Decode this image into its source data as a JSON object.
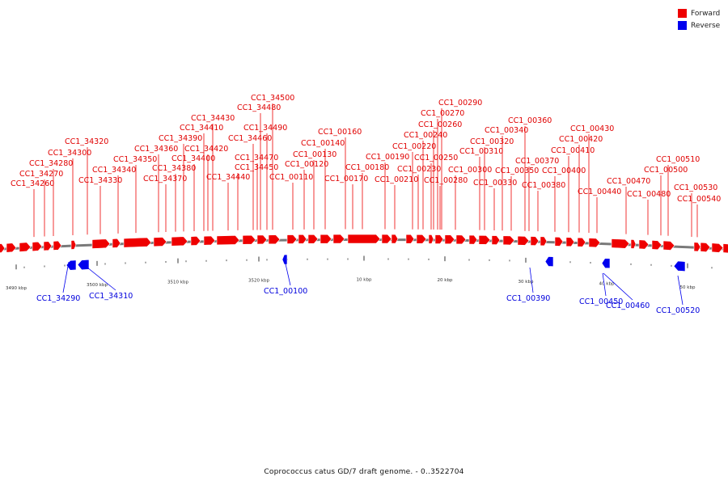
{
  "legend": [
    {
      "label": "Forward",
      "color": "#ee0000"
    },
    {
      "label": "Reverse",
      "color": "#0000ee"
    }
  ],
  "caption": "Coprococcus catus GD/7 draft genome. - 0..3522704",
  "genome": {
    "length_bp": 3522704,
    "backbone_color": "#7a7a7a"
  },
  "ticks": [
    {
      "label": "3490 kbp"
    },
    {
      "label": "3500 kbp"
    },
    {
      "label": "3510 kbp"
    },
    {
      "label": "3520 kbp"
    },
    {
      "label": "10 kbp"
    },
    {
      "label": "20 kbp"
    },
    {
      "label": "30 kbp"
    },
    {
      "label": "40 kbp"
    },
    {
      "label": "50 kbp"
    }
  ],
  "forward_genes": [
    "CC1_34260",
    "CC1_34270",
    "CC1_34280",
    "CC1_34300",
    "CC1_34320",
    "CC1_34330",
    "CC1_34340",
    "CC1_34350",
    "CC1_34360",
    "CC1_34370",
    "CC1_34380",
    "CC1_34390",
    "CC1_34400",
    "CC1_34410",
    "CC1_34420",
    "CC1_34430",
    "CC1_34440",
    "CC1_34450",
    "CC1_34460",
    "CC1_34470",
    "CC1_34480",
    "CC1_34490",
    "CC1_34500",
    "CC1_00110",
    "CC1_00120",
    "CC1_00130",
    "CC1_00140",
    "CC1_00160",
    "CC1_00170",
    "CC1_00180",
    "CC1_00190",
    "CC1_00210",
    "CC1_00220",
    "CC1_00230",
    "CC1_00240",
    "CC1_00250",
    "CC1_00260",
    "CC1_00270",
    "CC1_00280",
    "CC1_00290",
    "CC1_00300",
    "CC1_00310",
    "CC1_00320",
    "CC1_00330",
    "CC1_00340",
    "CC1_00350",
    "CC1_00360",
    "CC1_00370",
    "CC1_00380",
    "CC1_00400",
    "CC1_00410",
    "CC1_00420",
    "CC1_00430",
    "CC1_00440",
    "CC1_00470",
    "CC1_00480",
    "CC1_00500",
    "CC1_00510",
    "CC1_00530",
    "CC1_00540"
  ],
  "reverse_genes": [
    "CC1_34290",
    "CC1_34310",
    "CC1_00100",
    "CC1_00390",
    "CC1_00450",
    "CC1_00460",
    "CC1_00520"
  ]
}
